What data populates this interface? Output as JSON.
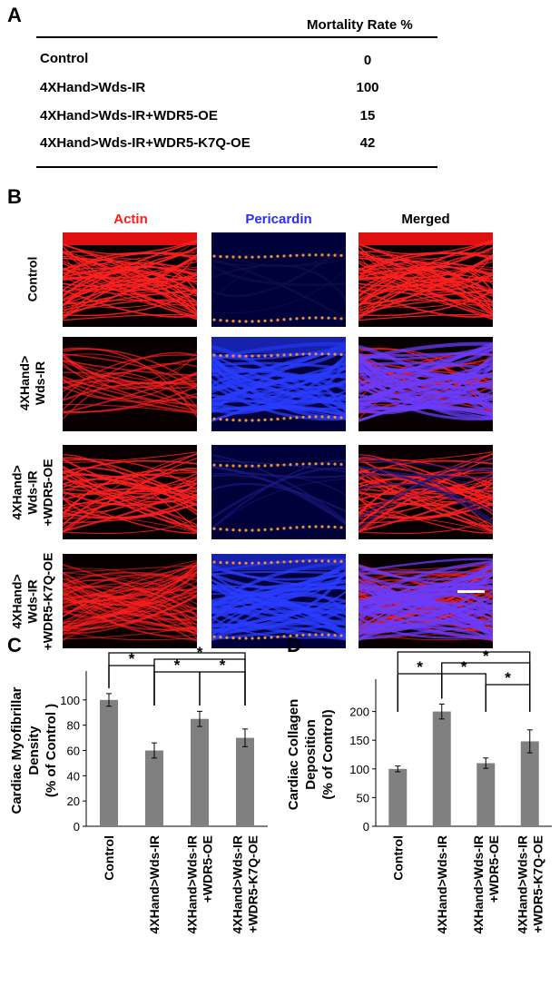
{
  "panels": {
    "a": "A",
    "b": "B",
    "c": "C",
    "d": "D"
  },
  "table": {
    "header": "Mortality Rate %",
    "rows": [
      {
        "label": "Control",
        "value": "0"
      },
      {
        "label": "4XHand>Wds-IR",
        "value": "100"
      },
      {
        "label": "4XHand>Wds-IR+WDR5-OE",
        "value": "15"
      },
      {
        "label": "4XHand>Wds-IR+WDR5-K7Q-OE",
        "value": "42"
      }
    ]
  },
  "micrographs": {
    "columns": [
      {
        "title": "Actin",
        "color": "#ff1a1a"
      },
      {
        "title": "Pericardin",
        "color": "#2b2bff"
      },
      {
        "title": "Merged",
        "color": "#000000"
      }
    ],
    "rows": [
      {
        "label_lines": [
          "Control"
        ]
      },
      {
        "label_lines": [
          "4XHand>",
          "Wds-IR"
        ]
      },
      {
        "label_lines": [
          "4XHand>",
          "Wds-IR",
          "+WDR5-OE"
        ]
      },
      {
        "label_lines": [
          "4XHand>",
          "Wds-IR",
          "+WDR5-K7Q-OE"
        ]
      }
    ],
    "dot_color": "#f08a3c"
  },
  "chart_data": [
    {
      "type": "bar",
      "categories": [
        "Control",
        "4XHand>Wds-IR",
        "4XHand>Wds-IR +WDR5-OE",
        "4XHand>Wds-IR +WDR5-K7Q-OE"
      ],
      "category_lines": [
        [
          "Control"
        ],
        [
          "4XHand>Wds-IR"
        ],
        [
          "4XHand>Wds-IR",
          "+WDR5-OE"
        ],
        [
          "4XHand>Wds-IR",
          "+WDR5-K7Q-OE"
        ]
      ],
      "values": [
        100,
        60,
        85,
        70
      ],
      "errors": [
        5,
        6,
        6,
        7
      ],
      "ylabel_lines": [
        "Cardiac Myofibrillar",
        "Density",
        "(% of Control )"
      ],
      "ylim": [
        0,
        120
      ],
      "yticks": [
        0,
        20,
        40,
        60,
        80,
        100
      ],
      "significance": [
        {
          "from": 0,
          "to": 1,
          "level": 1,
          "label": "*"
        },
        {
          "from": 0,
          "to": 3,
          "level": 2,
          "label": "*"
        },
        {
          "from": 1,
          "to": 3,
          "level": 1.5,
          "label": "*"
        },
        {
          "from": 1,
          "to": 2,
          "level": 0.5,
          "label": "*"
        },
        {
          "from": 2,
          "to": 3,
          "level": 0.5,
          "label": "*"
        }
      ]
    },
    {
      "type": "bar",
      "categories": [
        "Control",
        "4XHand>Wds-IR",
        "4XHand>Wds-IR +WDR5-OE",
        "4XHand>Wds-IR +WDR5-K7Q-OE"
      ],
      "category_lines": [
        [
          "Control"
        ],
        [
          "4XHand>Wds-IR"
        ],
        [
          "4XHand>Wds-IR",
          "+WDR5-OE"
        ],
        [
          "4XHand>Wds-IR",
          "+WDR5-K7Q-OE"
        ]
      ],
      "values": [
        100,
        200,
        110,
        148
      ],
      "errors": [
        5,
        13,
        9,
        20
      ],
      "ylabel_lines": [
        "Cardiac Collagen",
        "Deposition",
        "(% of Control)"
      ],
      "ylim": [
        0,
        250
      ],
      "yticks": [
        0,
        50,
        100,
        150,
        200
      ],
      "significance": [
        {
          "from": 0,
          "to": 1,
          "level": 1,
          "label": "*"
        },
        {
          "from": 0,
          "to": 3,
          "level": 3,
          "label": "*"
        },
        {
          "from": 1,
          "to": 3,
          "level": 2,
          "label": "*"
        },
        {
          "from": 1,
          "to": 2,
          "level": 1,
          "label": "*"
        },
        {
          "from": 2,
          "to": 3,
          "level": 0,
          "label": "*"
        }
      ]
    }
  ]
}
